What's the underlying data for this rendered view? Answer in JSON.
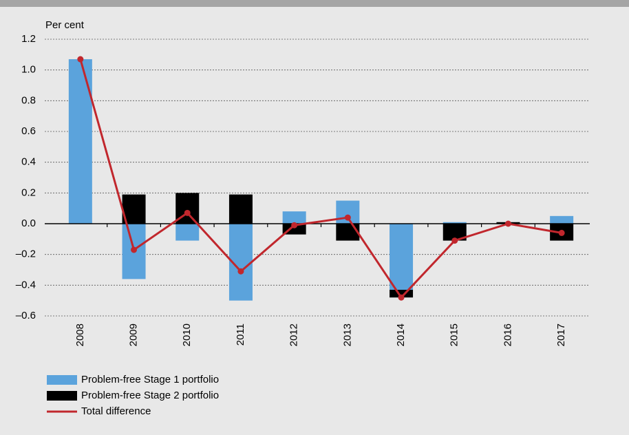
{
  "chart_data": {
    "type": "bar",
    "y_axis_label": "Per cent",
    "categories": [
      "2008",
      "2009",
      "2010",
      "2011",
      "2012",
      "2013",
      "2014",
      "2015",
      "2016",
      "2017"
    ],
    "series": [
      {
        "name": "Problem-free Stage 1 portfolio",
        "type": "bar",
        "color": "#5ba3dc",
        "values": [
          1.07,
          -0.36,
          -0.11,
          -0.5,
          0.08,
          0.15,
          -0.43,
          0.01,
          0.0,
          0.05
        ]
      },
      {
        "name": "Problem-free Stage 2 portfolio",
        "type": "bar",
        "color": "#000000",
        "values": [
          0.0,
          0.19,
          0.2,
          0.19,
          -0.07,
          -0.11,
          -0.05,
          -0.11,
          0.01,
          -0.11
        ]
      },
      {
        "name": "Total difference",
        "type": "line",
        "color": "#c1272d",
        "values": [
          1.07,
          -0.17,
          0.07,
          -0.31,
          -0.01,
          0.04,
          -0.48,
          -0.11,
          0.0,
          -0.06
        ]
      }
    ],
    "ylim": [
      -0.6,
      1.2
    ],
    "yticks": [
      {
        "value": -0.6,
        "label": "–0.6"
      },
      {
        "value": -0.4,
        "label": "–0.4"
      },
      {
        "value": -0.2,
        "label": "–0.2"
      },
      {
        "value": 0,
        "label": "0.0"
      },
      0.2,
      0.4,
      0.6,
      0.8,
      {
        "value": 1,
        "label": "1.0"
      },
      1.2
    ],
    "grid": true
  }
}
